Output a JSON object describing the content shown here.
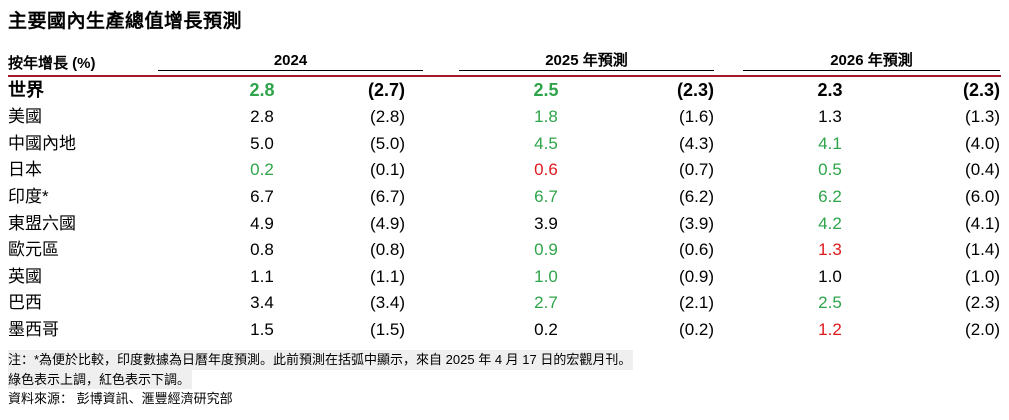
{
  "title": "主要國內生產總值增長預測",
  "header": {
    "label": "按年增長 (%)",
    "years": [
      "2024",
      "2025 年預測",
      "2026 年預測"
    ]
  },
  "rows": [
    {
      "name": "世界",
      "bold": true,
      "v": [
        "2.8",
        "(2.7)",
        "2.5",
        "(2.3)",
        "2.3",
        "(2.3)"
      ],
      "col": [
        "green",
        "",
        "green",
        "",
        "",
        ""
      ]
    },
    {
      "name": "美國",
      "v": [
        "2.8",
        "(2.8)",
        "1.8",
        "(1.6)",
        "1.3",
        "(1.3)"
      ],
      "col": [
        "",
        "",
        "green",
        "",
        "",
        ""
      ]
    },
    {
      "name": "中國內地",
      "v": [
        "5.0",
        "(5.0)",
        "4.5",
        "(4.3)",
        "4.1",
        "(4.0)"
      ],
      "col": [
        "",
        "",
        "green",
        "",
        "green",
        ""
      ]
    },
    {
      "name": "日本",
      "v": [
        "0.2",
        "(0.1)",
        "0.6",
        "(0.7)",
        "0.5",
        "(0.4)"
      ],
      "col": [
        "green",
        "",
        "red",
        "",
        "green",
        ""
      ]
    },
    {
      "name": "印度*",
      "v": [
        "6.7",
        "(6.7)",
        "6.7",
        "(6.2)",
        "6.2",
        "(6.0)"
      ],
      "col": [
        "",
        "",
        "green",
        "",
        "green",
        ""
      ]
    },
    {
      "name": "東盟六國",
      "v": [
        "4.9",
        "(4.9)",
        "3.9",
        "(3.9)",
        "4.2",
        "(4.1)"
      ],
      "col": [
        "",
        "",
        "",
        "",
        "green",
        ""
      ]
    },
    {
      "name": "歐元區",
      "v": [
        "0.8",
        "(0.8)",
        "0.9",
        "(0.6)",
        "1.3",
        "(1.4)"
      ],
      "col": [
        "",
        "",
        "green",
        "",
        "red",
        ""
      ]
    },
    {
      "name": "英國",
      "v": [
        "1.1",
        "(1.1)",
        "1.0",
        "(0.9)",
        "1.0",
        "(1.0)"
      ],
      "col": [
        "",
        "",
        "green",
        "",
        "",
        ""
      ]
    },
    {
      "name": "巴西",
      "v": [
        "3.4",
        "(3.4)",
        "2.7",
        "(2.1)",
        "2.5",
        "(2.3)"
      ],
      "col": [
        "",
        "",
        "green",
        "",
        "green",
        ""
      ]
    },
    {
      "name": "墨西哥",
      "v": [
        "1.5",
        "(1.5)",
        "0.2",
        "(0.2)",
        "1.2",
        "(2.0)"
      ],
      "col": [
        "",
        "",
        "",
        "",
        "red",
        ""
      ]
    }
  ],
  "notes": [
    "注：*為便於比較，印度數據為日曆年度預測。此前預測在括弧中顯示，來自 2025 年 4 月 17 日的宏觀月刊。",
    "綠色表示上調，紅色表示下調。",
    "資料來源： 彭博資訊、滙豐經濟研究部"
  ]
}
